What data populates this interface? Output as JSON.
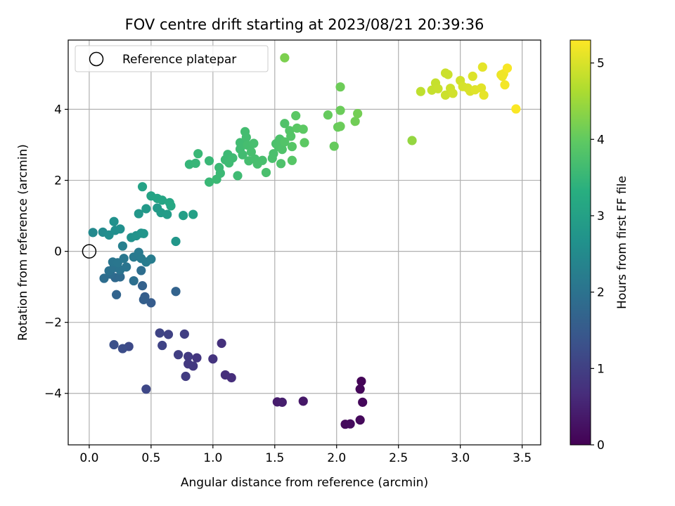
{
  "chart_data": {
    "type": "scatter",
    "title": "FOV centre drift starting at 2023/08/21 20:39:36",
    "xlabel": "Angular distance from reference (arcmin)",
    "ylabel": "Rotation from reference (arcmin)",
    "xlim": [
      -0.17,
      3.65
    ],
    "ylim": [
      -5.45,
      5.95
    ],
    "xticks": [
      0.0,
      0.5,
      1.0,
      1.5,
      2.0,
      2.5,
      3.0,
      3.5
    ],
    "xtick_labels": [
      "0.0",
      "0.5",
      "1.0",
      "1.5",
      "2.0",
      "2.5",
      "3.0",
      "3.5"
    ],
    "yticks": [
      -4,
      -2,
      0,
      2,
      4
    ],
    "ytick_labels": [
      "−4",
      "−2",
      "0",
      "2",
      "4"
    ],
    "grid": true,
    "legend": {
      "placement": "top-left",
      "entries": [
        "Reference platepar"
      ]
    },
    "reference_point": {
      "x": 0.0,
      "y": 0.0
    },
    "colorbar": {
      "label": "Hours from first FF file",
      "colormap": "viridis",
      "range": [
        0,
        5.3
      ],
      "ticks": [
        0,
        1,
        2,
        3,
        4,
        5
      ],
      "tick_labels": [
        "0",
        "1",
        "2",
        "3",
        "4",
        "5"
      ]
    },
    "points": [
      [
        2.2,
        -3.66,
        0.05
      ],
      [
        2.19,
        -3.88,
        0.08
      ],
      [
        2.21,
        -4.25,
        0.1
      ],
      [
        2.19,
        -4.75,
        0.12
      ],
      [
        2.07,
        -4.87,
        0.14
      ],
      [
        2.11,
        -4.86,
        0.16
      ],
      [
        1.73,
        -4.22,
        0.35
      ],
      [
        1.52,
        -4.24,
        0.42
      ],
      [
        1.56,
        -4.25,
        0.44
      ],
      [
        1.15,
        -3.56,
        0.7
      ],
      [
        1.1,
        -3.48,
        0.72
      ],
      [
        1.07,
        -2.59,
        0.75
      ],
      [
        1.0,
        -3.03,
        0.8
      ],
      [
        0.87,
        -3.0,
        0.85
      ],
      [
        0.84,
        -3.23,
        0.88
      ],
      [
        0.8,
        -3.17,
        0.9
      ],
      [
        0.8,
        -2.96,
        0.92
      ],
      [
        0.78,
        -3.52,
        0.95
      ],
      [
        0.77,
        -2.33,
        0.98
      ],
      [
        0.72,
        -2.91,
        1.0
      ],
      [
        0.64,
        -2.34,
        1.05
      ],
      [
        0.59,
        -2.65,
        1.08
      ],
      [
        0.57,
        -2.3,
        1.1
      ],
      [
        0.46,
        -3.88,
        1.15
      ],
      [
        0.32,
        -2.68,
        1.2
      ],
      [
        0.27,
        -2.74,
        1.25
      ],
      [
        0.2,
        -2.63,
        1.3
      ],
      [
        0.5,
        -1.45,
        1.55
      ],
      [
        0.45,
        -1.28,
        1.6
      ],
      [
        0.44,
        -1.36,
        1.62
      ],
      [
        0.43,
        -0.97,
        1.65
      ],
      [
        0.7,
        -1.13,
        1.7
      ],
      [
        0.22,
        -1.22,
        1.72
      ],
      [
        0.21,
        -0.74,
        1.8
      ],
      [
        0.25,
        -0.72,
        1.85
      ],
      [
        0.17,
        -0.64,
        1.88
      ],
      [
        0.12,
        -0.76,
        1.9
      ],
      [
        0.42,
        -0.54,
        1.92
      ],
      [
        0.36,
        -0.83,
        1.95
      ],
      [
        0.16,
        -0.55,
        1.98
      ],
      [
        0.2,
        -0.46,
        2.0
      ],
      [
        0.25,
        -0.52,
        2.02
      ],
      [
        0.3,
        -0.44,
        2.05
      ],
      [
        0.19,
        -0.3,
        2.08
      ],
      [
        0.23,
        -0.32,
        2.1
      ],
      [
        0.28,
        -0.2,
        2.12
      ],
      [
        0.36,
        -0.16,
        2.15
      ],
      [
        0.4,
        -0.03,
        2.18
      ],
      [
        0.42,
        -0.2,
        2.2
      ],
      [
        0.46,
        -0.3,
        2.22
      ],
      [
        0.5,
        -0.22,
        2.25
      ],
      [
        0.27,
        0.15,
        2.3
      ],
      [
        0.03,
        0.53,
        2.5
      ],
      [
        0.11,
        0.54,
        2.55
      ],
      [
        0.16,
        0.46,
        2.6
      ],
      [
        0.21,
        0.59,
        2.62
      ],
      [
        0.25,
        0.63,
        2.65
      ],
      [
        0.2,
        0.84,
        2.68
      ],
      [
        0.34,
        0.39,
        2.7
      ],
      [
        0.38,
        0.44,
        2.72
      ],
      [
        0.42,
        0.51,
        2.75
      ],
      [
        0.44,
        0.5,
        2.78
      ],
      [
        0.4,
        1.06,
        2.82
      ],
      [
        0.46,
        1.2,
        2.85
      ],
      [
        0.55,
        1.22,
        2.88
      ],
      [
        0.58,
        1.09,
        2.9
      ],
      [
        0.63,
        1.04,
        2.93
      ],
      [
        0.7,
        0.28,
        2.8
      ],
      [
        0.76,
        1.01,
        3.0
      ],
      [
        0.84,
        1.04,
        3.02
      ],
      [
        0.43,
        1.82,
        3.05
      ],
      [
        0.5,
        1.56,
        3.08
      ],
      [
        0.55,
        1.49,
        3.1
      ],
      [
        0.59,
        1.44,
        3.12
      ],
      [
        0.65,
        1.37,
        3.15
      ],
      [
        0.66,
        1.28,
        3.18
      ],
      [
        0.81,
        2.45,
        3.5
      ],
      [
        0.86,
        2.48,
        3.52
      ],
      [
        0.88,
        2.75,
        3.55
      ],
      [
        0.97,
        2.55,
        3.55
      ],
      [
        0.97,
        1.95,
        3.55
      ],
      [
        1.03,
        2.03,
        3.58
      ],
      [
        1.05,
        2.36,
        3.58
      ],
      [
        1.06,
        2.2,
        3.58
      ],
      [
        1.1,
        2.58,
        3.6
      ],
      [
        1.12,
        2.73,
        3.6
      ],
      [
        1.13,
        2.49,
        3.62
      ],
      [
        1.16,
        2.63,
        3.62
      ],
      [
        1.2,
        2.13,
        3.62
      ],
      [
        1.22,
        2.88,
        3.65
      ],
      [
        1.22,
        3.06,
        3.65
      ],
      [
        1.24,
        2.72,
        3.66
      ],
      [
        1.26,
        3.37,
        3.68
      ],
      [
        1.27,
        3.21,
        3.68
      ],
      [
        1.28,
        2.99,
        3.7
      ],
      [
        1.29,
        2.55,
        3.7
      ],
      [
        1.31,
        2.8,
        3.72
      ],
      [
        1.33,
        3.04,
        3.72
      ],
      [
        1.34,
        2.6,
        3.72
      ],
      [
        1.36,
        2.46,
        3.74
      ],
      [
        1.4,
        2.56,
        3.74
      ],
      [
        1.43,
        2.22,
        3.75
      ],
      [
        1.48,
        2.62,
        3.76
      ],
      [
        1.49,
        2.75,
        3.76
      ],
      [
        1.51,
        3.03,
        3.78
      ],
      [
        1.53,
        2.95,
        3.8
      ],
      [
        1.54,
        3.16,
        3.8
      ],
      [
        1.55,
        2.47,
        3.8
      ],
      [
        1.56,
        2.87,
        3.82
      ],
      [
        1.58,
        3.6,
        3.84
      ],
      [
        1.58,
        3.08,
        3.86
      ],
      [
        1.62,
        3.4,
        3.88
      ],
      [
        1.63,
        3.24,
        3.88
      ],
      [
        1.64,
        2.95,
        3.9
      ],
      [
        1.64,
        2.56,
        3.9
      ],
      [
        1.67,
        3.82,
        3.95
      ],
      [
        1.68,
        3.47,
        3.95
      ],
      [
        1.73,
        3.44,
        3.97
      ],
      [
        1.74,
        3.06,
        3.97
      ],
      [
        1.58,
        5.45,
        4.25
      ],
      [
        1.93,
        3.84,
        4.05
      ],
      [
        1.98,
        2.96,
        4.05
      ],
      [
        2.01,
        3.5,
        4.08
      ],
      [
        2.03,
        3.52,
        4.1
      ],
      [
        2.03,
        4.63,
        4.12
      ],
      [
        2.03,
        3.97,
        4.1
      ],
      [
        2.15,
        3.66,
        4.15
      ],
      [
        2.17,
        3.88,
        4.18
      ],
      [
        2.61,
        3.12,
        4.45
      ],
      [
        2.68,
        4.5,
        4.8
      ],
      [
        2.77,
        4.54,
        4.85
      ],
      [
        2.8,
        4.74,
        4.85
      ],
      [
        2.82,
        4.58,
        4.88
      ],
      [
        2.88,
        4.4,
        4.9
      ],
      [
        2.88,
        5.02,
        4.9
      ],
      [
        2.9,
        4.98,
        4.9
      ],
      [
        2.92,
        4.59,
        4.92
      ],
      [
        2.94,
        4.45,
        4.95
      ],
      [
        3.0,
        4.81,
        4.95
      ],
      [
        3.02,
        4.64,
        4.98
      ],
      [
        3.06,
        4.6,
        5.0
      ],
      [
        3.08,
        4.51,
        5.02
      ],
      [
        3.1,
        4.93,
        5.04
      ],
      [
        3.12,
        4.55,
        5.06
      ],
      [
        3.17,
        4.6,
        5.08
      ],
      [
        3.18,
        5.19,
        5.1
      ],
      [
        3.19,
        4.4,
        5.12
      ],
      [
        3.33,
        4.97,
        5.15
      ],
      [
        3.34,
        4.93,
        5.18
      ],
      [
        3.35,
        5.0,
        5.2
      ],
      [
        3.36,
        4.69,
        5.22
      ],
      [
        3.38,
        5.16,
        5.25
      ],
      [
        3.45,
        4.01,
        5.28
      ]
    ]
  }
}
